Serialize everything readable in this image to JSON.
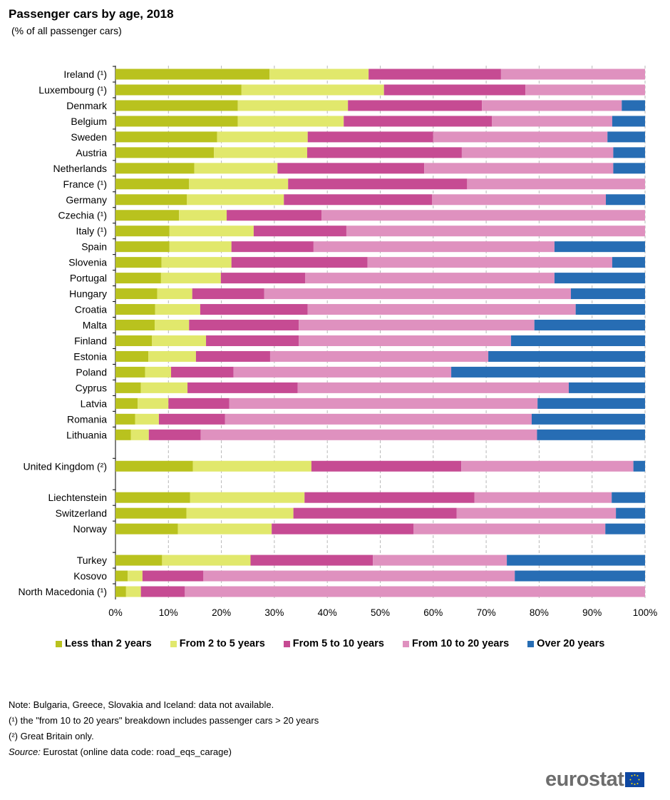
{
  "chart_data": {
    "type": "bar",
    "orientation": "horizontal-stacked-100",
    "title": "Passenger cars by age, 2018",
    "subtitle": "(% of all passenger cars)",
    "xlim": [
      0,
      100
    ],
    "x_ticks": [
      "0%",
      "10%",
      "20%",
      "30%",
      "40%",
      "50%",
      "60%",
      "70%",
      "80%",
      "90%",
      "100%"
    ],
    "grid": "vertical dashed",
    "legend_position": "bottom",
    "series": [
      {
        "name": "Less than 2 years",
        "color": "#b9c21e"
      },
      {
        "name": "From 2 to 5 years",
        "color": "#e1e86c"
      },
      {
        "name": "From 5 to 10 years",
        "color": "#c64b93"
      },
      {
        "name": "From 10 to 20 years",
        "color": "#df91bf"
      },
      {
        "name": "Over 20 years",
        "color": "#276db4"
      }
    ],
    "groups": [
      [
        {
          "label": "Ireland (¹)",
          "values": [
            29.1,
            18.7,
            25.0,
            27.2,
            0
          ]
        },
        {
          "label": "Luxembourg (¹)",
          "values": [
            23.8,
            26.9,
            26.7,
            22.6,
            0
          ]
        },
        {
          "label": "Denmark",
          "values": [
            23.1,
            20.8,
            25.3,
            26.4,
            4.4
          ]
        },
        {
          "label": "Belgium",
          "values": [
            23.1,
            20.0,
            28.0,
            22.7,
            6.2
          ]
        },
        {
          "label": "Sweden",
          "values": [
            19.2,
            17.1,
            23.7,
            32.9,
            7.1
          ]
        },
        {
          "label": "Austria",
          "values": [
            18.6,
            17.6,
            29.2,
            28.6,
            6.0
          ]
        },
        {
          "label": "Netherlands",
          "values": [
            14.9,
            15.7,
            27.7,
            35.7,
            6.0
          ]
        },
        {
          "label": "France (¹)",
          "values": [
            13.9,
            18.7,
            33.8,
            33.6,
            0
          ]
        },
        {
          "label": "Germany",
          "values": [
            13.5,
            18.3,
            28.0,
            32.8,
            7.4
          ]
        },
        {
          "label": "Czechia (¹)",
          "values": [
            12.0,
            9.0,
            17.9,
            61.1,
            0
          ]
        },
        {
          "label": "Italy (¹)",
          "values": [
            10.2,
            15.9,
            17.5,
            56.4,
            0
          ]
        },
        {
          "label": "Spain",
          "values": [
            10.2,
            11.7,
            15.5,
            45.5,
            17.1
          ]
        },
        {
          "label": "Slovenia",
          "values": [
            8.7,
            13.2,
            25.7,
            46.2,
            6.2
          ]
        },
        {
          "label": "Portugal",
          "values": [
            8.6,
            11.3,
            15.9,
            47.1,
            17.1
          ]
        },
        {
          "label": "Hungary",
          "values": [
            7.9,
            6.6,
            13.6,
            57.9,
            14.0
          ]
        },
        {
          "label": "Croatia",
          "values": [
            7.5,
            8.5,
            20.3,
            50.6,
            13.1
          ]
        },
        {
          "label": "Malta",
          "values": [
            7.4,
            6.5,
            20.7,
            44.5,
            20.9
          ]
        },
        {
          "label": "Finland",
          "values": [
            6.9,
            10.2,
            17.5,
            40.1,
            25.3
          ]
        },
        {
          "label": "Estonia",
          "values": [
            6.2,
            9.0,
            14.0,
            41.2,
            29.6
          ]
        },
        {
          "label": "Poland",
          "values": [
            5.6,
            4.9,
            11.8,
            41.1,
            36.6
          ]
        },
        {
          "label": "Cyprus",
          "values": [
            4.8,
            8.8,
            20.8,
            51.2,
            14.4
          ]
        },
        {
          "label": "Latvia",
          "values": [
            4.2,
            5.8,
            11.5,
            58.2,
            20.3
          ]
        },
        {
          "label": "Romania",
          "values": [
            3.7,
            4.5,
            12.5,
            57.9,
            21.4
          ]
        },
        {
          "label": "Lithuania",
          "values": [
            2.9,
            3.4,
            9.8,
            63.5,
            20.4
          ]
        }
      ],
      [
        {
          "label": "United Kingdom (²)",
          "values": [
            14.6,
            22.4,
            28.3,
            32.5,
            2.2
          ]
        }
      ],
      [
        {
          "label": "Liechtenstein",
          "values": [
            14.1,
            21.6,
            32.1,
            25.9,
            6.3
          ]
        },
        {
          "label": "Switzerland",
          "values": [
            13.4,
            20.2,
            30.8,
            30.1,
            5.5
          ]
        },
        {
          "label": "Norway",
          "values": [
            11.8,
            17.7,
            26.8,
            36.2,
            7.5
          ]
        }
      ],
      [
        {
          "label": "Turkey",
          "values": [
            8.8,
            16.7,
            23.1,
            25.3,
            26.1
          ]
        },
        {
          "label": "Kosovo",
          "values": [
            2.3,
            2.8,
            11.5,
            58.8,
            24.6
          ]
        },
        {
          "label": "North Macedonia (¹)",
          "values": [
            2.0,
            2.8,
            8.3,
            86.9,
            0
          ]
        }
      ]
    ]
  },
  "notes": {
    "note": "Note: Bulgaria, Greece, Slovakia and Iceland: data not available.",
    "fn1": "(¹) the \"from 10 to 20 years\" breakdown includes passenger cars > 20 years",
    "fn2": "(²) Great Britain only.",
    "source_label": "Source:",
    "source_text": " Eurostat (online data code: road_eqs_carage)"
  },
  "logo": "eurostat"
}
